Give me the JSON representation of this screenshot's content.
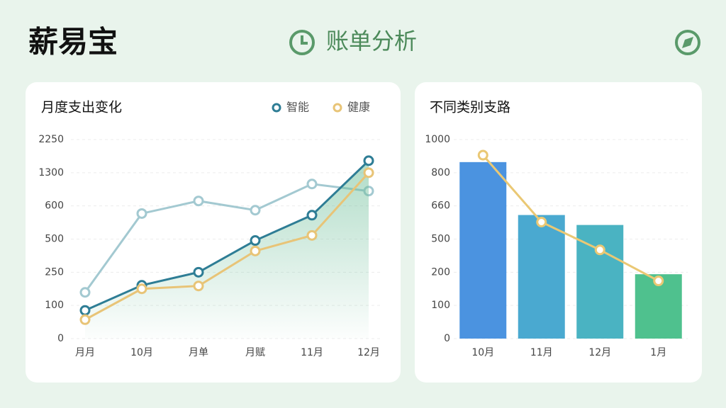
{
  "header": {
    "brand": "薪易宝",
    "title": "账单分析"
  },
  "chart_data": [
    {
      "type": "line",
      "title": "月度支出变化",
      "categories": [
        "月月",
        "10月",
        "月单",
        "月赋",
        "11月",
        "12月"
      ],
      "yticks": [
        0,
        100,
        250,
        500,
        600,
        1300,
        2250
      ],
      "ylim": [
        0,
        2250
      ],
      "grid": true,
      "series": [
        {
          "color": "#a3c9d1",
          "values": [
            159,
            577,
            704,
            587,
            1062,
            913
          ]
        },
        {
          "name": "智能",
          "color": "#2e7d95",
          "values": [
            85,
            191,
            250,
            489,
            572,
            1644
          ]
        },
        {
          "name": "健康",
          "color": "#e8c477",
          "values": [
            57,
            175,
            188,
            410,
            511,
            1300
          ]
        }
      ]
    },
    {
      "type": "bar",
      "title": "不同类别支路",
      "categories": [
        "10月",
        "11月",
        "12月",
        "1月"
      ],
      "yticks": [
        0,
        100,
        200,
        500,
        660,
        800,
        1000
      ],
      "ylim": [
        0,
        1000
      ],
      "grid": true,
      "series": [
        {
          "colors": [
            "#4b93e0",
            "#4aa9d0",
            "#4ab3c2",
            "#4fc18e"
          ],
          "values": [
            864,
            616,
            568,
            194
          ]
        },
        {
          "type": "line",
          "color": "#eac874",
          "values": [
            906,
            582,
            402,
            174
          ]
        }
      ]
    }
  ]
}
